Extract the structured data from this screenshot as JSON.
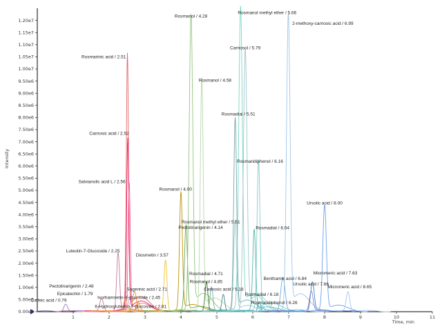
{
  "chart_data": {
    "type": "line",
    "title": "",
    "xlabel": "Time, min",
    "ylabel": "Intensity",
    "xlim": [
      0,
      11
    ],
    "ylim": [
      0,
      12500000
    ],
    "x_ticks": [
      1,
      2,
      3,
      4,
      5,
      6,
      7,
      8,
      9,
      10,
      11
    ],
    "y_ticks": [
      {
        "value": 0,
        "label": "0.00e0"
      },
      {
        "value": 500000,
        "label": "5.00e5"
      },
      {
        "value": 1000000,
        "label": "1.00e6"
      },
      {
        "value": 1500000,
        "label": "1.50e6"
      },
      {
        "value": 2000000,
        "label": "2.00e6"
      },
      {
        "value": 2500000,
        "label": "2.50e6"
      },
      {
        "value": 3000000,
        "label": "3.00e6"
      },
      {
        "value": 3500000,
        "label": "3.50e6"
      },
      {
        "value": 4000000,
        "label": "4.00e6"
      },
      {
        "value": 4500000,
        "label": "4.50e6"
      },
      {
        "value": 5000000,
        "label": "5.00e6"
      },
      {
        "value": 5500000,
        "label": "5.50e6"
      },
      {
        "value": 6000000,
        "label": "6.00e6"
      },
      {
        "value": 6500000,
        "label": "6.50e6"
      },
      {
        "value": 7000000,
        "label": "7.00e6"
      },
      {
        "value": 7500000,
        "label": "7.50e6"
      },
      {
        "value": 8000000,
        "label": "8.00e6"
      },
      {
        "value": 8500000,
        "label": "8.50e6"
      },
      {
        "value": 9000000,
        "label": "9.00e6"
      },
      {
        "value": 9500000,
        "label": "9.50e6"
      },
      {
        "value": 10000000,
        "label": "1.00e7"
      },
      {
        "value": 10500000,
        "label": "1.05e7"
      },
      {
        "value": 11000000,
        "label": "1.10e7"
      },
      {
        "value": 11500000,
        "label": "1.15e7"
      },
      {
        "value": 12000000,
        "label": "1.20e7"
      }
    ],
    "grid": false,
    "legend": "none",
    "peaks": [
      {
        "label": "Caffeic acid / 0.79",
        "rt": 0.79,
        "height": 300000,
        "width": 0.05,
        "color": "#8e7cc3",
        "lx": 0.32,
        "ly": 410000
      },
      {
        "label": "Pectolinarigenin / 2.48",
        "rt": 2.48,
        "height": 800000,
        "width": 0.05,
        "color": "#b4a7d6",
        "lx": 0.95,
        "ly": 1000000
      },
      {
        "label": "Epicatechin / 1.79",
        "rt": 1.79,
        "height": 500000,
        "width": 0.05,
        "color": "#c27ba0",
        "lx": 1.05,
        "ly": 680000
      },
      {
        "label": "Luteolin-7-Glucoside / 2.25",
        "rt": 2.25,
        "height": 2400000,
        "width": 0.04,
        "color": "#c27ba0",
        "lx": 1.55,
        "ly": 2450000
      },
      {
        "label": "Rosmarinic acid / 2.51",
        "rt": 2.51,
        "height": 10400000,
        "width": 0.03,
        "color": "#e06666",
        "lx": 1.85,
        "ly": 10440000
      },
      {
        "label": "Carnosic acid / 2.52",
        "rt": 2.52,
        "height": 7000000,
        "width": 0.03,
        "color": "#e91e63",
        "lx": 2.0,
        "ly": 7280000
      },
      {
        "label": "Salvianolic acid L / 2.56",
        "rt": 2.56,
        "height": 5200000,
        "width": 0.03,
        "color": "#f06292",
        "lx": 1.8,
        "ly": 5300000
      },
      {
        "label": "6-Hydroxyluteolin-7-glucoside / 2.81",
        "rt": 2.81,
        "height": 350000,
        "width": 0.05,
        "color": "#ff9900",
        "lx": 2.6,
        "ly": 160000
      },
      {
        "label": "Isorhamnetin-3-glucoside / 2.45",
        "rt": 2.45,
        "height": 500000,
        "width": 0.05,
        "color": "#f6b26b",
        "lx": 2.55,
        "ly": 520000
      },
      {
        "label": "Sagerinic acid / 2.71",
        "rt": 2.71,
        "height": 800000,
        "width": 0.05,
        "color": "#e69138",
        "lx": 3.05,
        "ly": 870000
      },
      {
        "label": "Diosmetin / 3.57",
        "rt": 3.57,
        "height": 2100000,
        "width": 0.04,
        "color": "#f1c232",
        "lx": 3.2,
        "ly": 2270000
      },
      {
        "label": "Rosmanol / 4.00",
        "rt": 4.0,
        "height": 4800000,
        "width": 0.04,
        "color": "#bf9000",
        "lx": 3.85,
        "ly": 4990000
      },
      {
        "label": "Pectolinarigenin / 4.14",
        "rt": 4.14,
        "height": 3500000,
        "width": 0.04,
        "color": "#6aa84f",
        "lx": 4.55,
        "ly": 3410000
      },
      {
        "label": "Rosmanol / 4.28",
        "rt": 4.28,
        "height": 12000000,
        "width": 0.05,
        "color": "#93c47d",
        "lx": 4.28,
        "ly": 12120000
      },
      {
        "label": "Rosmanol / 4.58",
        "rt": 4.58,
        "height": 9400000,
        "width": 0.04,
        "color": "#b6d7a8",
        "lx": 4.95,
        "ly": 9470000
      },
      {
        "label": "Rosmadial / 4.71",
        "rt": 4.71,
        "height": 1200000,
        "width": 0.04,
        "color": "#38761d",
        "lx": 4.7,
        "ly": 1510000
      },
      {
        "label": "Rosmanol / 4.85",
        "rt": 4.85,
        "height": 1000000,
        "width": 0.04,
        "color": "#76a5af",
        "lx": 4.7,
        "ly": 1180000
      },
      {
        "label": "Rosmanol methyl ether / 5.51",
        "rt": 5.51,
        "height": 3700000,
        "width": 0.04,
        "color": "#a2c4c9",
        "lx": 4.83,
        "ly": 3640000
      },
      {
        "label": "Carnosic acid / 5.18",
        "rt": 5.18,
        "height": 700000,
        "width": 0.04,
        "color": "#45818e",
        "lx": 5.19,
        "ly": 860000
      },
      {
        "label": "Rosmadial / 5.51",
        "rt": 5.51,
        "height": 7800000,
        "width": 0.04,
        "color": "#76a5af",
        "lx": 5.6,
        "ly": 8080000
      },
      {
        "label": "Rosmanol methyl ether / 5.66",
        "rt": 5.66,
        "height": 12300000,
        "width": 0.05,
        "color": "#76d7c4",
        "lx": 6.4,
        "ly": 12260000
      },
      {
        "label": "Carnosol / 5.79",
        "rt": 5.79,
        "height": 10600000,
        "width": 0.05,
        "color": "#a2c4c9",
        "lx": 5.79,
        "ly": 10810000
      },
      {
        "label": "Rosmaridiphenol / 6.16",
        "rt": 6.16,
        "height": 6100000,
        "width": 0.04,
        "color": "#80cbc4",
        "lx": 6.2,
        "ly": 6140000
      },
      {
        "label": "Rosmadial / 6.04",
        "rt": 6.04,
        "height": 3300000,
        "width": 0.04,
        "color": "#4db6ac",
        "lx": 6.55,
        "ly": 3400000
      },
      {
        "label": "Rosmadial / 6.18",
        "rt": 6.18,
        "height": 400000,
        "width": 0.04,
        "color": "#26a69a",
        "lx": 6.25,
        "ly": 660000
      },
      {
        "label": "Rosmaridiphenol / 6.26",
        "rt": 6.26,
        "height": 250000,
        "width": 0.04,
        "color": "#4dd0e1",
        "lx": 6.6,
        "ly": 310000
      },
      {
        "label": "Benthamic acid / 6.84",
        "rt": 6.84,
        "height": 1400000,
        "width": 0.06,
        "color": "#6fa8dc",
        "lx": 6.9,
        "ly": 1310000
      },
      {
        "label": "2-methoxy-carnosic acid / 6.99",
        "rt": 6.99,
        "height": 12000000,
        "width": 0.05,
        "color": "#9fc5e8",
        "lx": 7.95,
        "ly": 11820000
      },
      {
        "label": "Ursolic acid / 7.66",
        "rt": 7.66,
        "height": 1200000,
        "width": 0.05,
        "color": "#3d85c6",
        "lx": 7.62,
        "ly": 1080000
      },
      {
        "label": "Ursolic acid / 8.00",
        "rt": 8.0,
        "height": 4300000,
        "width": 0.05,
        "color": "#6d9eeb",
        "lx": 8.0,
        "ly": 4420000
      },
      {
        "label": "Micromeric acid / 7.63",
        "rt": 7.63,
        "height": 800000,
        "width": 0.05,
        "color": "#8e7cc3",
        "lx": 8.3,
        "ly": 1530000
      },
      {
        "label": "Micromeric acid / 8.65",
        "rt": 8.65,
        "height": 800000,
        "width": 0.05,
        "color": "#a4c2f4",
        "lx": 8.7,
        "ly": 960000
      }
    ]
  }
}
